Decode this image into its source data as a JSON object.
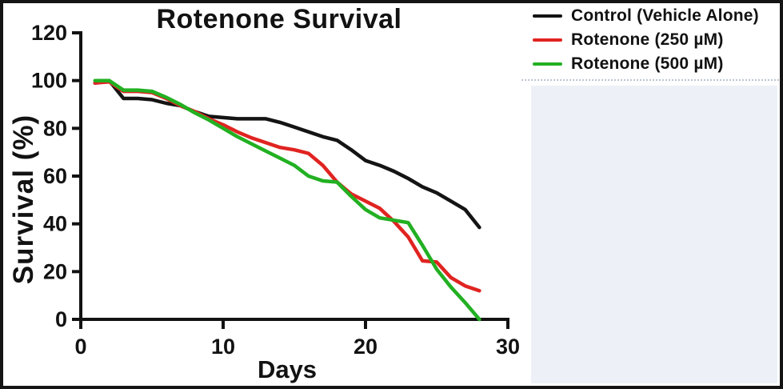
{
  "panel": {
    "color": "#edf1f7"
  },
  "chart_data": {
    "type": "line",
    "title": "Rotenone Survival",
    "xlabel": "Days",
    "ylabel": "Survival (%)",
    "xlim": [
      0,
      30
    ],
    "ylim": [
      0,
      120
    ],
    "x_ticks": [
      0,
      10,
      20,
      30
    ],
    "y_ticks": [
      0,
      20,
      40,
      60,
      80,
      100,
      120
    ],
    "grid": false,
    "legend_position": "outside-top-right",
    "axis_color": "#121212",
    "x": [
      1,
      2,
      3,
      4,
      5,
      6,
      7,
      8,
      9,
      10,
      11,
      12,
      13,
      14,
      15,
      16,
      17,
      18,
      19,
      20,
      21,
      22,
      23,
      24,
      25,
      26,
      27,
      28
    ],
    "series": [
      {
        "name": "Control (Vehicle Alone)",
        "color": "#141414",
        "values": [
          99,
          100,
          92.5,
          92.5,
          92,
          90.5,
          89.5,
          87,
          85,
          84.5,
          84,
          84,
          84,
          82.5,
          80.5,
          78.5,
          76.5,
          75,
          71,
          66.5,
          64.5,
          62,
          59,
          55.5,
          53,
          49.5,
          46,
          38.5
        ]
      },
      {
        "name": "Rotenone (250 µM)",
        "color": "#e02421",
        "values": [
          99,
          99.5,
          95.5,
          95.5,
          95,
          92.5,
          89.5,
          87,
          84,
          81.5,
          78.5,
          76,
          74,
          72,
          71,
          69.5,
          64.5,
          57.5,
          52.5,
          49.5,
          46.5,
          41,
          34.5,
          24.5,
          24,
          17.5,
          14,
          12
        ]
      },
      {
        "name": "Rotenone (500 µM)",
        "color": "#22b022",
        "values": [
          100,
          100,
          96,
          96,
          95.5,
          93,
          90,
          86.5,
          83.5,
          80,
          76.5,
          73.5,
          70.5,
          67.5,
          64.5,
          60,
          58,
          57.5,
          51.5,
          46,
          42.5,
          41.5,
          40.5,
          31,
          21,
          13.5,
          7,
          0
        ]
      }
    ]
  }
}
